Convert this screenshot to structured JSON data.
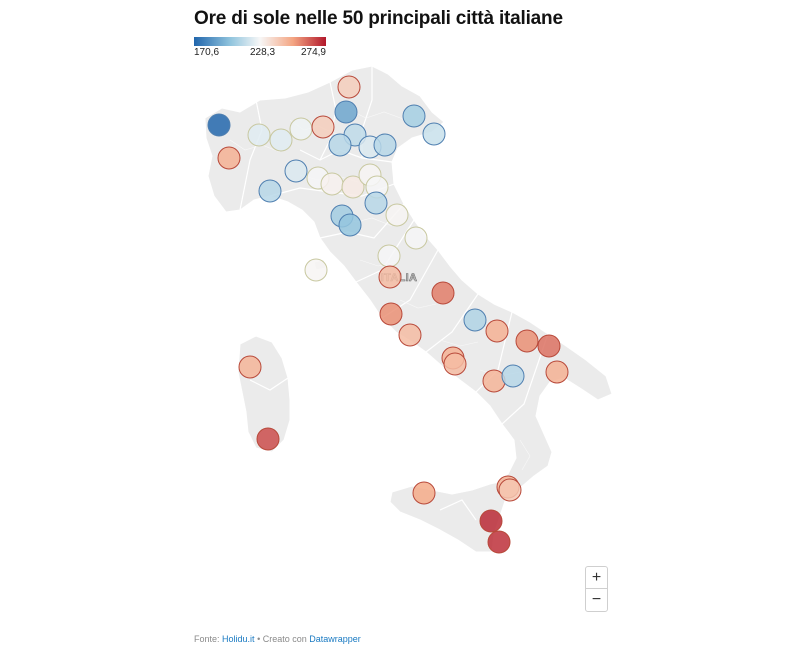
{
  "title": "Ore di sole nelle 50 principali città italiane",
  "legend": {
    "min_label": "170,6",
    "mid_label": "228,3",
    "max_label": "274,9",
    "min": 170.6,
    "mid": 228.3,
    "max": 274.9,
    "colors": [
      "#2166ac",
      "#92c5de",
      "#f7f7f7",
      "#f4a582",
      "#b2182b"
    ]
  },
  "map": {
    "region_label": "ITALIA",
    "land_color": "#ebebeb",
    "border_color": "#ffffff"
  },
  "zoom": {
    "in_label": "+",
    "out_label": "−"
  },
  "footer": {
    "source_prefix": "Fonte:",
    "source_name": "Holidu.it",
    "separator": "•",
    "credit_prefix": "Creato con",
    "credit_name": "Datawrapper"
  }
}
